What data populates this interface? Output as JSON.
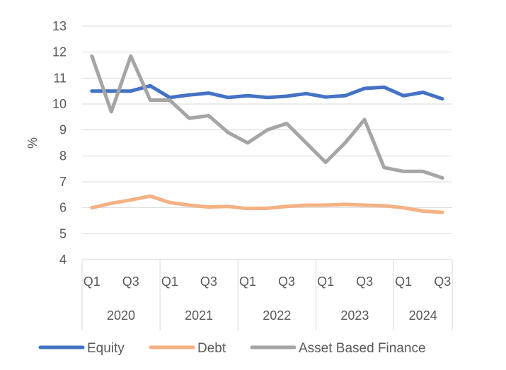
{
  "chart_data": {
    "type": "line",
    "title": "",
    "ylabel": "%",
    "xlabel": "",
    "ylim": [
      4,
      13
    ],
    "yticks": [
      4,
      5,
      6,
      7,
      8,
      9,
      10,
      11,
      12,
      13
    ],
    "grid": "horizontal",
    "legend_position": "bottom",
    "x": [
      "Q1",
      "Q2",
      "Q3",
      "Q4",
      "Q1",
      "Q2",
      "Q3",
      "Q4",
      "Q1",
      "Q2",
      "Q3",
      "Q4",
      "Q1",
      "Q2",
      "Q3",
      "Q4",
      "Q1",
      "Q2",
      "Q3"
    ],
    "x_tick_labels": [
      "Q1",
      "",
      "Q3",
      "",
      "Q1",
      "",
      "Q3",
      "",
      "Q1",
      "",
      "Q3",
      "",
      "Q1",
      "",
      "Q3",
      "",
      "Q1",
      "",
      "Q3"
    ],
    "year_groups": [
      {
        "label": "2020",
        "count": 4
      },
      {
        "label": "2021",
        "count": 4
      },
      {
        "label": "2022",
        "count": 4
      },
      {
        "label": "2023",
        "count": 4
      },
      {
        "label": "2024",
        "count": 3
      }
    ],
    "series": [
      {
        "name": "Equity",
        "color": "#4472C4",
        "values": [
          10.5,
          10.5,
          10.5,
          10.7,
          10.25,
          10.35,
          10.42,
          10.25,
          10.32,
          10.25,
          10.3,
          10.4,
          10.27,
          10.32,
          10.6,
          10.65,
          10.32,
          10.45,
          10.2
        ]
      },
      {
        "name": "Debt",
        "color": "#F4B183",
        "values": [
          6.0,
          6.17,
          6.3,
          6.45,
          6.2,
          6.1,
          6.03,
          6.05,
          5.97,
          5.98,
          6.05,
          6.1,
          6.1,
          6.13,
          6.1,
          6.08,
          6.0,
          5.87,
          5.82
        ]
      },
      {
        "name": "Asset Based Finance",
        "color": "#A5A5A5",
        "values": [
          11.85,
          9.7,
          11.85,
          10.15,
          10.15,
          9.45,
          9.55,
          8.9,
          8.5,
          9.0,
          9.25,
          8.5,
          7.75,
          8.5,
          9.4,
          7.55,
          7.4,
          7.4,
          7.15
        ]
      }
    ]
  }
}
